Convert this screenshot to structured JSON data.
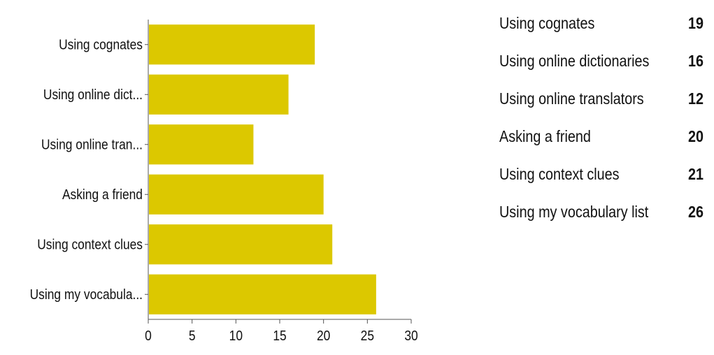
{
  "chart_data": {
    "type": "bar",
    "orientation": "horizontal",
    "categories": [
      "Using cognates",
      "Using online dict...",
      "Using online tran...",
      "Asking a friend",
      "Using context clues",
      "Using my vocabula..."
    ],
    "values": [
      19,
      16,
      12,
      20,
      21,
      26
    ],
    "xlim": [
      0,
      30
    ],
    "xticks": [
      "0",
      "5",
      "10",
      "15",
      "20",
      "25",
      "30"
    ],
    "title": "",
    "xlabel": "",
    "ylabel": "",
    "grid": false,
    "bar_color": "#dcc800"
  },
  "summary": {
    "rows": [
      {
        "label": "Using cognates",
        "count": "19"
      },
      {
        "label": "Using online dictionaries",
        "count": "16"
      },
      {
        "label": "Using online translators",
        "count": "12"
      },
      {
        "label": "Asking a friend",
        "count": "20"
      },
      {
        "label": "Using context clues",
        "count": "21"
      },
      {
        "label": "Using my vocabulary list",
        "count": "26"
      }
    ]
  }
}
